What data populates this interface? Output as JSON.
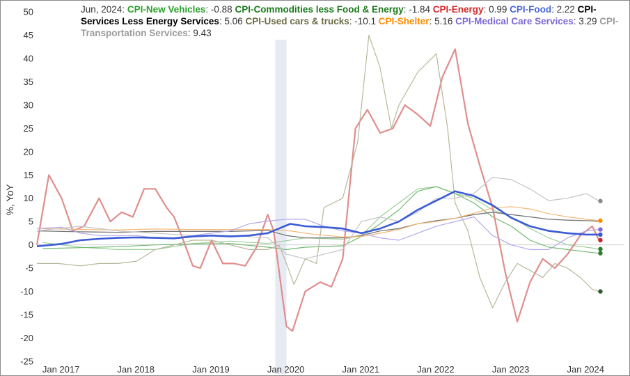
{
  "chart_data": {
    "type": "line",
    "legend_header": "Jun, 2024:",
    "ylabel": "%, YoY",
    "ylim": [
      -25,
      50
    ],
    "yticks": [
      -25,
      -20,
      -15,
      -10,
      -5,
      0,
      5,
      10,
      15,
      20,
      25,
      30,
      35,
      40,
      45,
      50
    ],
    "xlim": [
      2016.92,
      2024.75
    ],
    "xticks": [
      {
        "label": "Jan 2017",
        "t": 2017.0
      },
      {
        "label": "Jan 2018",
        "t": 2018.0
      },
      {
        "label": "Jan 2019",
        "t": 2019.0
      },
      {
        "label": "Jan 2020",
        "t": 2020.0
      },
      {
        "label": "Jan 2021",
        "t": 2021.0
      },
      {
        "label": "Jan 2022",
        "t": 2022.0
      },
      {
        "label": "Jan 2023",
        "t": 2023.0
      },
      {
        "label": "Jan 2024",
        "t": 2024.0
      }
    ],
    "recession": {
      "start": 2020.1,
      "end": 2020.25
    },
    "grid": false,
    "zero_line": true,
    "series": [
      {
        "name": "CPI-New Vehicles",
        "label_color": "#2ca02c",
        "color": "#9ccf98",
        "width": 1.2,
        "end_value": "-0.88",
        "end_marker": true,
        "x": [
          2017,
          2017.5,
          2018,
          2018.5,
          2019,
          2019.5,
          2020,
          2020.5,
          2021,
          2021.25,
          2021.5,
          2021.75,
          2022,
          2022.25,
          2022.5,
          2022.75,
          2023,
          2023.25,
          2023.5,
          2023.75,
          2024,
          2024.25,
          2024.42
        ],
        "y": [
          0.5,
          -0.5,
          -1,
          -1,
          0.3,
          0.8,
          0.3,
          1.5,
          1.2,
          2,
          6,
          9,
          12,
          12.5,
          11,
          10,
          7.5,
          6,
          3.5,
          1.5,
          0,
          -0.5,
          -0.9
        ]
      },
      {
        "name": "CPI-Commodities less Food & Energy",
        "label_color": "#1a7a1a",
        "color": "#6fb96f",
        "width": 1.2,
        "end_value": "-1.84",
        "end_marker": true,
        "x": [
          2017,
          2017.5,
          2018,
          2018.5,
          2019,
          2019.5,
          2020,
          2020.25,
          2020.5,
          2021,
          2021.25,
          2021.5,
          2021.75,
          2022,
          2022.25,
          2022.5,
          2022.75,
          2023,
          2023.25,
          2023.5,
          2023.75,
          2024,
          2024.25,
          2024.42
        ],
        "y": [
          -0.8,
          -0.6,
          -0.4,
          0,
          0.2,
          0.3,
          -0.5,
          -1,
          -0.5,
          -0.2,
          1.8,
          4.5,
          7.5,
          11.5,
          12.5,
          11,
          9,
          6,
          4,
          1,
          -0.5,
          -1,
          -1.5,
          -1.8
        ]
      },
      {
        "name": "CPI-Energy",
        "label_color": "#d62728",
        "color": "#e08d8d",
        "width": 2.2,
        "end_value": "0.99",
        "end_marker": true,
        "x": [
          2016.92,
          2017.08,
          2017.25,
          2017.4,
          2017.55,
          2017.75,
          2017.9,
          2018.05,
          2018.2,
          2018.35,
          2018.5,
          2018.65,
          2018.75,
          2018.85,
          2019,
          2019.1,
          2019.25,
          2019.4,
          2019.55,
          2019.7,
          2019.85,
          2020.0,
          2020.08,
          2020.25,
          2020.33,
          2020.5,
          2020.7,
          2020.85,
          2021.0,
          2021.17,
          2021.33,
          2021.5,
          2021.67,
          2021.83,
          2022.0,
          2022.17,
          2022.33,
          2022.5,
          2022.67,
          2022.83,
          2023.0,
          2023.17,
          2023.33,
          2023.5,
          2023.67,
          2023.83,
          2024.0,
          2024.17,
          2024.33,
          2024.42
        ],
        "y": [
          0,
          15,
          10,
          3,
          4,
          10,
          5,
          7,
          6,
          12,
          12,
          8,
          6,
          2,
          -4.5,
          -5,
          1,
          -4,
          -4,
          -4.5,
          -0.5,
          6.5,
          3,
          -17.5,
          -18.5,
          -10,
          -8,
          -9,
          -3,
          25,
          29,
          24,
          25,
          30,
          28,
          25.5,
          36,
          42,
          26,
          17,
          8,
          -6,
          -16.5,
          -8,
          -3,
          -5,
          -2,
          2,
          4,
          1
        ]
      },
      {
        "name": "CPI-Food",
        "label_color": "#4a67d6",
        "color": "#3a5bd4",
        "width": 2.6,
        "end_value": "2.22",
        "end_marker": true,
        "x": [
          2016.92,
          2017.25,
          2017.5,
          2017.75,
          2018,
          2018.25,
          2018.5,
          2018.75,
          2019,
          2019.25,
          2019.5,
          2019.75,
          2020,
          2020.15,
          2020.3,
          2020.5,
          2020.75,
          2021,
          2021.25,
          2021.5,
          2021.75,
          2022,
          2022.25,
          2022.5,
          2022.75,
          2023,
          2023.25,
          2023.5,
          2023.75,
          2024,
          2024.25,
          2024.42
        ],
        "y": [
          -0.3,
          0.2,
          1,
          1.3,
          1.5,
          1.6,
          1.5,
          1.4,
          1.8,
          2,
          1.8,
          2,
          2.5,
          3.5,
          4.5,
          4,
          3.8,
          3.5,
          2.5,
          3.5,
          5,
          7.5,
          9.5,
          11.5,
          10.5,
          8.5,
          5.8,
          4,
          3,
          2.5,
          2.2,
          2.2
        ]
      },
      {
        "name": "CPI-Services Less Energy Services",
        "label_color": "#000000",
        "color": "#777777",
        "width": 1.3,
        "end_value": "5.06",
        "end_marker": false,
        "x": [
          2016.92,
          2017.5,
          2018,
          2018.5,
          2019,
          2019.5,
          2020,
          2020.25,
          2020.5,
          2021,
          2021.25,
          2021.5,
          2021.75,
          2022,
          2022.25,
          2022.5,
          2022.75,
          2023,
          2023.25,
          2023.5,
          2023.75,
          2024,
          2024.25,
          2024.42
        ],
        "y": [
          3,
          2.8,
          2.7,
          2.9,
          2.9,
          2.9,
          3.1,
          2,
          1.5,
          1.5,
          2,
          3,
          3.5,
          4.5,
          5.2,
          5.7,
          6.5,
          7,
          6.5,
          6,
          5.5,
          5.3,
          5.2,
          5.06
        ]
      },
      {
        "name": "CPI-Used cars & trucks",
        "label_color": "#6b6b45",
        "color": "#b7b79c",
        "width": 1.2,
        "end_value": "-10.1",
        "end_marker": true,
        "x": [
          2016.92,
          2017.2,
          2017.5,
          2017.75,
          2018,
          2018.25,
          2018.5,
          2018.75,
          2019,
          2019.25,
          2019.5,
          2019.75,
          2020,
          2020.15,
          2020.25,
          2020.35,
          2020.5,
          2020.65,
          2020.75,
          2021,
          2021.2,
          2021.35,
          2021.5,
          2021.65,
          2021.75,
          2022.0,
          2022.25,
          2022.4,
          2022.5,
          2022.67,
          2022.83,
          2023.0,
          2023.17,
          2023.33,
          2023.5,
          2023.67,
          2023.83,
          2024.0,
          2024.17,
          2024.33,
          2024.42
        ],
        "y": [
          -4,
          -4,
          -4.5,
          -4,
          -4,
          -3.5,
          -1,
          0,
          1,
          1,
          0,
          -1,
          -1,
          0,
          -4,
          -8.5,
          -3,
          -4,
          8,
          10,
          22,
          45,
          38,
          25,
          30,
          37,
          41,
          25,
          9,
          3,
          -7,
          -13.5,
          -8,
          -4,
          -5.5,
          -7,
          -4,
          -5,
          -7,
          -9.5,
          -10
        ]
      },
      {
        "name": "CPI-Shelter",
        "label_color": "#ff8c00",
        "color": "#f5b878",
        "width": 1.2,
        "end_value": "5.16",
        "end_marker": true,
        "x": [
          2016.92,
          2017.5,
          2018,
          2018.5,
          2019,
          2019.5,
          2020,
          2020.3,
          2020.6,
          2021,
          2021.25,
          2021.5,
          2021.75,
          2022,
          2022.25,
          2022.5,
          2022.75,
          2023,
          2023.25,
          2023.5,
          2023.75,
          2024,
          2024.25,
          2024.42
        ],
        "y": [
          3.5,
          3.3,
          3.2,
          3.4,
          3.3,
          3.3,
          3.3,
          3,
          2.3,
          1.7,
          1.8,
          2.5,
          3.3,
          4.5,
          5,
          5.7,
          6.8,
          7.9,
          8.2,
          7.7,
          6.7,
          6,
          5.5,
          5.2
        ]
      },
      {
        "name": "CPI-Medical Care Services",
        "label_color": "#7b68d9",
        "color": "#b2a9ea",
        "width": 1.2,
        "end_value": "3.29",
        "end_marker": true,
        "x": [
          2016.92,
          2017.25,
          2017.5,
          2017.75,
          2018,
          2018.25,
          2018.5,
          2018.75,
          2019,
          2019.25,
          2019.5,
          2019.75,
          2020,
          2020.25,
          2020.5,
          2020.75,
          2021,
          2021.25,
          2021.5,
          2021.75,
          2022,
          2022.25,
          2022.5,
          2022.75,
          2023,
          2023.25,
          2023.5,
          2023.75,
          2024,
          2024.25,
          2024.42
        ],
        "y": [
          3.5,
          3.8,
          2.5,
          2,
          2,
          2,
          1.5,
          1.5,
          2,
          2.5,
          3,
          4.5,
          5.1,
          5.5,
          5.5,
          4,
          3,
          2.5,
          1.5,
          1,
          2.5,
          4,
          5,
          6,
          2,
          0,
          -1,
          -1,
          1.5,
          3,
          3.3
        ]
      },
      {
        "name": "CPI-Transportation Services",
        "label_color": "#9a9a9a",
        "color": "#c4c4c4",
        "width": 1.2,
        "end_value": "9.43",
        "end_marker": true,
        "x": [
          2016.92,
          2017.5,
          2018,
          2018.5,
          2019,
          2019.5,
          2020,
          2020.25,
          2020.5,
          2021,
          2021.25,
          2021.5,
          2021.75,
          2022,
          2022.25,
          2022.5,
          2022.75,
          2023,
          2023.25,
          2023.5,
          2023.75,
          2024,
          2024.25,
          2024.42
        ],
        "y": [
          3,
          4,
          3,
          2.5,
          2,
          2,
          1.5,
          -2,
          -3,
          -1,
          5,
          6,
          5,
          7,
          10,
          10,
          11,
          14.5,
          14,
          12,
          9.5,
          10,
          11,
          9.4
        ]
      }
    ]
  }
}
